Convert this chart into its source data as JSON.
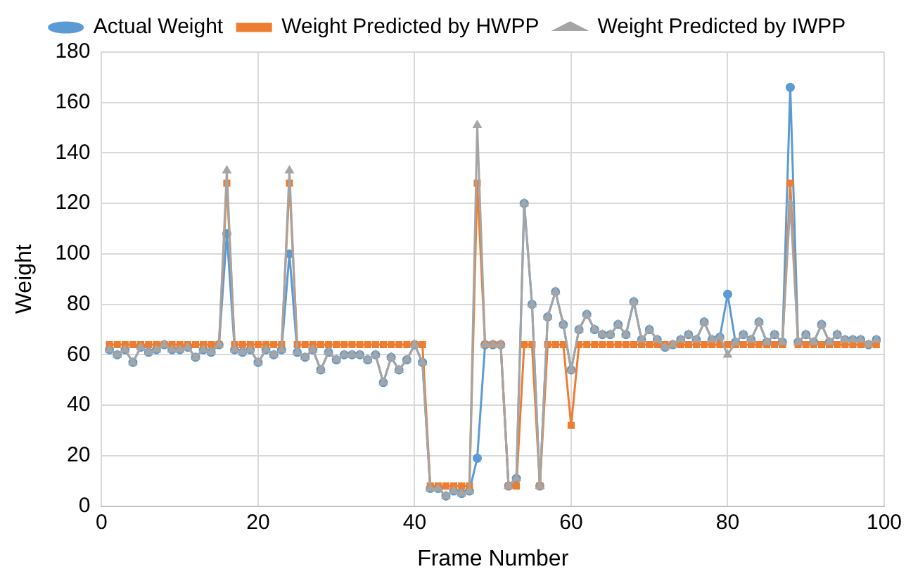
{
  "chart_data": {
    "type": "line",
    "xlabel": "Frame Number",
    "ylabel": "Weight",
    "x": [
      1,
      2,
      3,
      4,
      5,
      6,
      7,
      8,
      9,
      10,
      11,
      12,
      13,
      14,
      15,
      16,
      17,
      18,
      19,
      20,
      21,
      22,
      23,
      24,
      25,
      26,
      27,
      28,
      29,
      30,
      31,
      32,
      33,
      34,
      35,
      36,
      37,
      38,
      39,
      40,
      41,
      42,
      43,
      44,
      45,
      46,
      47,
      48,
      49,
      50,
      51,
      52,
      53,
      54,
      55,
      56,
      57,
      58,
      59,
      60,
      61,
      62,
      63,
      64,
      65,
      66,
      67,
      68,
      69,
      70,
      71,
      72,
      73,
      74,
      75,
      76,
      77,
      78,
      79,
      80,
      81,
      82,
      83,
      84,
      85,
      86,
      87,
      88,
      89,
      90,
      91,
      92,
      93,
      94,
      95,
      96,
      97,
      98,
      99
    ],
    "series": [
      {
        "name": "Actual Weight",
        "color": "#5b9bd5",
        "marker": "circle",
        "values": [
          62,
          60,
          62,
          57,
          63,
          61,
          62,
          64,
          62,
          62,
          63,
          59,
          62,
          61,
          64,
          108,
          62,
          61,
          62,
          57,
          62,
          60,
          62,
          100,
          61,
          59,
          62,
          54,
          61,
          58,
          60,
          60,
          60,
          58,
          60,
          49,
          59,
          54,
          58,
          64,
          57,
          7,
          7,
          4,
          6,
          5,
          6,
          19,
          64,
          64,
          64,
          8,
          11,
          120,
          80,
          8,
          75,
          85,
          72,
          54,
          70,
          76,
          70,
          68,
          68,
          72,
          68,
          81,
          66,
          70,
          66,
          63,
          64,
          66,
          68,
          66,
          73,
          66,
          67,
          84,
          65,
          68,
          66,
          73,
          65,
          68,
          65,
          166,
          65,
          68,
          65,
          72,
          65,
          68,
          66,
          66,
          66,
          64,
          66
        ]
      },
      {
        "name": "Weight Predicted by HWPP",
        "color": "#ed7d31",
        "marker": "square",
        "values": [
          64,
          64,
          64,
          64,
          64,
          64,
          64,
          64,
          64,
          64,
          64,
          64,
          64,
          64,
          64,
          128,
          64,
          64,
          64,
          64,
          64,
          64,
          64,
          128,
          64,
          64,
          64,
          64,
          64,
          64,
          64,
          64,
          64,
          64,
          64,
          64,
          64,
          64,
          64,
          64,
          64,
          8,
          8,
          8,
          8,
          8,
          8,
          128,
          64,
          64,
          64,
          8,
          8,
          64,
          64,
          8,
          64,
          64,
          64,
          32,
          64,
          64,
          64,
          64,
          64,
          64,
          64,
          64,
          64,
          64,
          64,
          64,
          64,
          64,
          64,
          64,
          64,
          64,
          64,
          64,
          64,
          64,
          64,
          64,
          64,
          64,
          64,
          128,
          64,
          64,
          64,
          64,
          64,
          64,
          64,
          64,
          64,
          64,
          64
        ]
      },
      {
        "name": "Weight Predicted by IWPP",
        "color": "#a5a5a5",
        "marker": "triangle",
        "values": [
          62,
          60,
          62,
          57,
          63,
          61,
          62,
          64,
          62,
          62,
          63,
          59,
          62,
          61,
          64,
          133,
          62,
          61,
          62,
          57,
          62,
          60,
          62,
          133,
          61,
          59,
          62,
          54,
          61,
          58,
          60,
          60,
          60,
          58,
          60,
          49,
          59,
          54,
          58,
          64,
          57,
          7,
          7,
          4,
          6,
          5,
          6,
          151,
          64,
          64,
          64,
          8,
          11,
          120,
          80,
          8,
          75,
          85,
          72,
          54,
          70,
          76,
          70,
          68,
          68,
          72,
          68,
          81,
          66,
          70,
          66,
          63,
          64,
          66,
          68,
          66,
          73,
          66,
          67,
          60,
          65,
          68,
          66,
          73,
          65,
          68,
          65,
          120,
          65,
          68,
          65,
          72,
          65,
          68,
          66,
          66,
          66,
          64,
          66
        ]
      }
    ],
    "xlim": [
      0,
      100
    ],
    "xticks": [
      0,
      20,
      40,
      60,
      80,
      100
    ],
    "ylim": [
      0,
      180
    ],
    "yticks": [
      0,
      20,
      40,
      60,
      80,
      100,
      120,
      140,
      160,
      180
    ],
    "grid": true,
    "legend": "top"
  }
}
